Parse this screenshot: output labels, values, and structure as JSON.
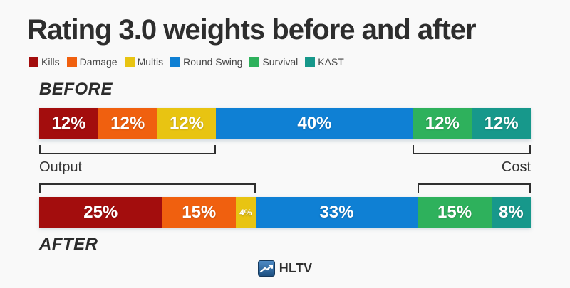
{
  "title": "Rating 3.0 weights before and after",
  "legend": [
    {
      "label": "Kills",
      "color": "#a30d0d"
    },
    {
      "label": "Damage",
      "color": "#f0600f"
    },
    {
      "label": "Multis",
      "color": "#e8c412"
    },
    {
      "label": "Round Swing",
      "color": "#0f80d4"
    },
    {
      "label": "Survival",
      "color": "#2eb15c"
    },
    {
      "label": "KAST",
      "color": "#17988b"
    }
  ],
  "labels": {
    "before": "BEFORE",
    "after": "AFTER",
    "output": "Output",
    "cost": "Cost"
  },
  "chart_data": {
    "type": "bar",
    "stacked": true,
    "orientation": "horizontal",
    "units": "percent",
    "categories": [
      "BEFORE",
      "AFTER"
    ],
    "series": [
      {
        "name": "Kills",
        "color": "#a30d0d",
        "values": [
          12,
          25
        ]
      },
      {
        "name": "Damage",
        "color": "#f0600f",
        "values": [
          12,
          15
        ]
      },
      {
        "name": "Multis",
        "color": "#e8c412",
        "values": [
          12,
          4
        ]
      },
      {
        "name": "Round Swing",
        "color": "#0f80d4",
        "values": [
          40,
          33
        ]
      },
      {
        "name": "Survival",
        "color": "#2eb15c",
        "values": [
          12,
          15
        ]
      },
      {
        "name": "KAST",
        "color": "#17988b",
        "values": [
          12,
          8
        ]
      }
    ],
    "annotations": {
      "output": {
        "label": "Output",
        "before_span": [
          0,
          36
        ],
        "after_span": [
          0,
          44
        ]
      },
      "cost": {
        "label": "Cost",
        "before_span": [
          76,
          100
        ],
        "after_span": [
          77,
          100
        ]
      }
    },
    "legend_position": "top-left",
    "grid": false,
    "xlim": [
      0,
      100
    ]
  },
  "footer": {
    "brand": "HLTV"
  },
  "colors": {
    "background": "#f9f9f9",
    "title": "#2d2d2d",
    "bracket": "#2f2f2f",
    "bar_value_text": "#ffffff"
  }
}
